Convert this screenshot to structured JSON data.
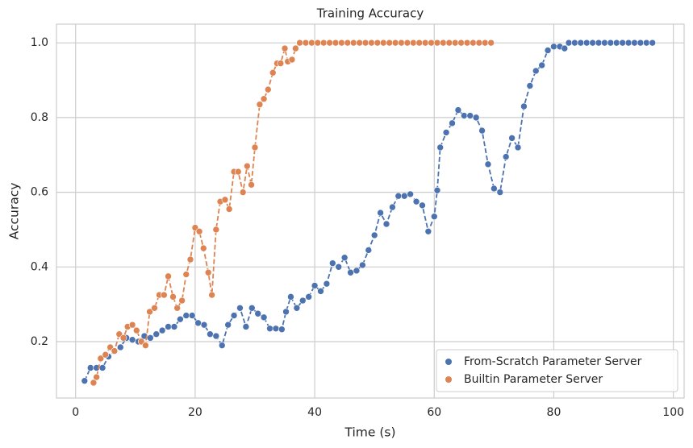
{
  "chart_data": {
    "type": "line",
    "title": "Training Accuracy",
    "x_label": "Time (s)",
    "y_label": "Accuracy",
    "xlim": [
      -3.2,
      101.8
    ],
    "ylim": [
      0.049,
      1.05
    ],
    "xticks": [
      0,
      20,
      40,
      60,
      80,
      100
    ],
    "yticks": [
      0.2,
      0.4,
      0.6,
      0.8,
      {
        "value": 1,
        "label": "1.0"
      }
    ],
    "grid": true,
    "legend": "lower right",
    "series": [
      {
        "name": "From-Scratch Parameter Server",
        "color": "#4c72b0",
        "x": [
          1.5,
          2.5,
          3.5,
          4.5,
          5.5,
          6.5,
          7.5,
          8.5,
          9.5,
          10.5,
          11.5,
          12.5,
          13.5,
          14.5,
          15.5,
          16.5,
          17.5,
          18.5,
          19.5,
          20.5,
          21.5,
          22.5,
          23.5,
          24.5,
          25.5,
          26.5,
          27.5,
          28.5,
          29.5,
          30.5,
          31.5,
          32.5,
          33.5,
          34.5,
          35.2,
          36,
          37,
          38,
          39,
          40,
          41,
          42,
          43,
          44,
          45,
          46,
          47,
          48,
          49,
          50,
          51,
          52,
          53,
          54,
          55,
          56,
          57,
          58,
          59,
          60,
          60.5,
          61,
          62,
          63,
          64,
          65,
          66,
          67,
          68,
          69,
          70,
          71,
          72,
          73,
          74,
          75,
          76,
          77,
          78,
          79,
          80,
          81,
          81.8,
          82.5,
          83.5,
          84.5,
          85.5,
          86.5,
          87.5,
          88.5,
          89.5,
          90.5,
          91.5,
          92.5,
          93.5,
          94.5,
          95.5,
          96.5
        ],
        "values": [
          0.095,
          0.13,
          0.13,
          0.13,
          0.16,
          0.175,
          0.185,
          0.21,
          0.205,
          0.2,
          0.215,
          0.21,
          0.22,
          0.23,
          0.24,
          0.24,
          0.26,
          0.27,
          0.27,
          0.25,
          0.245,
          0.22,
          0.215,
          0.19,
          0.245,
          0.27,
          0.29,
          0.24,
          0.29,
          0.275,
          0.265,
          0.235,
          0.235,
          0.233,
          0.28,
          0.32,
          0.29,
          0.31,
          0.32,
          0.35,
          0.335,
          0.355,
          0.41,
          0.4,
          0.425,
          0.385,
          0.39,
          0.405,
          0.445,
          0.485,
          0.545,
          0.515,
          0.56,
          0.59,
          0.59,
          0.595,
          0.575,
          0.565,
          0.495,
          0.535,
          0.605,
          0.72,
          0.76,
          0.785,
          0.82,
          0.805,
          0.805,
          0.8,
          0.765,
          0.675,
          0.61,
          0.6,
          0.695,
          0.745,
          0.72,
          0.83,
          0.885,
          0.925,
          0.94,
          0.98,
          0.99,
          0.99,
          0.985,
          1,
          1,
          1,
          1,
          1,
          1,
          1,
          1,
          1,
          1,
          1,
          1,
          1,
          1,
          1
        ]
      },
      {
        "name": "Builtin Parameter Server",
        "color": "#dd8452",
        "x": [
          3,
          3.5,
          4.2,
          5,
          5.8,
          6.5,
          7.3,
          8,
          8.7,
          9.5,
          10.2,
          11,
          11.7,
          12.4,
          13.2,
          14,
          14.8,
          15.5,
          16.3,
          17,
          17.8,
          18.5,
          19.2,
          20,
          20.7,
          21.4,
          22.2,
          22.8,
          23.5,
          24.2,
          25,
          25.7,
          26.5,
          27.2,
          28,
          28.7,
          29.4,
          30,
          30.8,
          31.5,
          32.2,
          33,
          33.7,
          34.3,
          35,
          35.5,
          36.2,
          36.8,
          37.5,
          38.5,
          39.5,
          40.5,
          41.5,
          42.5,
          43.5,
          44.5,
          45.5,
          46.5,
          47.5,
          48.5,
          49.5,
          50.5,
          51.5,
          52.5,
          53.5,
          54.5,
          55.5,
          56.5,
          57.5,
          58.5,
          59.5,
          60.5,
          61.5,
          62.5,
          63.5,
          64.5,
          65.5,
          66.5,
          67.5,
          68.5,
          69.5
        ],
        "values": [
          0.09,
          0.105,
          0.155,
          0.165,
          0.185,
          0.175,
          0.22,
          0.21,
          0.24,
          0.245,
          0.23,
          0.2,
          0.19,
          0.28,
          0.29,
          0.325,
          0.325,
          0.375,
          0.32,
          0.29,
          0.31,
          0.38,
          0.42,
          0.505,
          0.495,
          0.45,
          0.385,
          0.325,
          0.5,
          0.575,
          0.58,
          0.555,
          0.655,
          0.655,
          0.6,
          0.67,
          0.62,
          0.72,
          0.835,
          0.85,
          0.875,
          0.92,
          0.945,
          0.945,
          0.985,
          0.95,
          0.955,
          0.985,
          1,
          1,
          1,
          1,
          1,
          1,
          1,
          1,
          1,
          1,
          1,
          1,
          1,
          1,
          1,
          1,
          1,
          1,
          1,
          1,
          1,
          1,
          1,
          1,
          1,
          1,
          1,
          1,
          1,
          1,
          1,
          1,
          1
        ]
      }
    ]
  }
}
